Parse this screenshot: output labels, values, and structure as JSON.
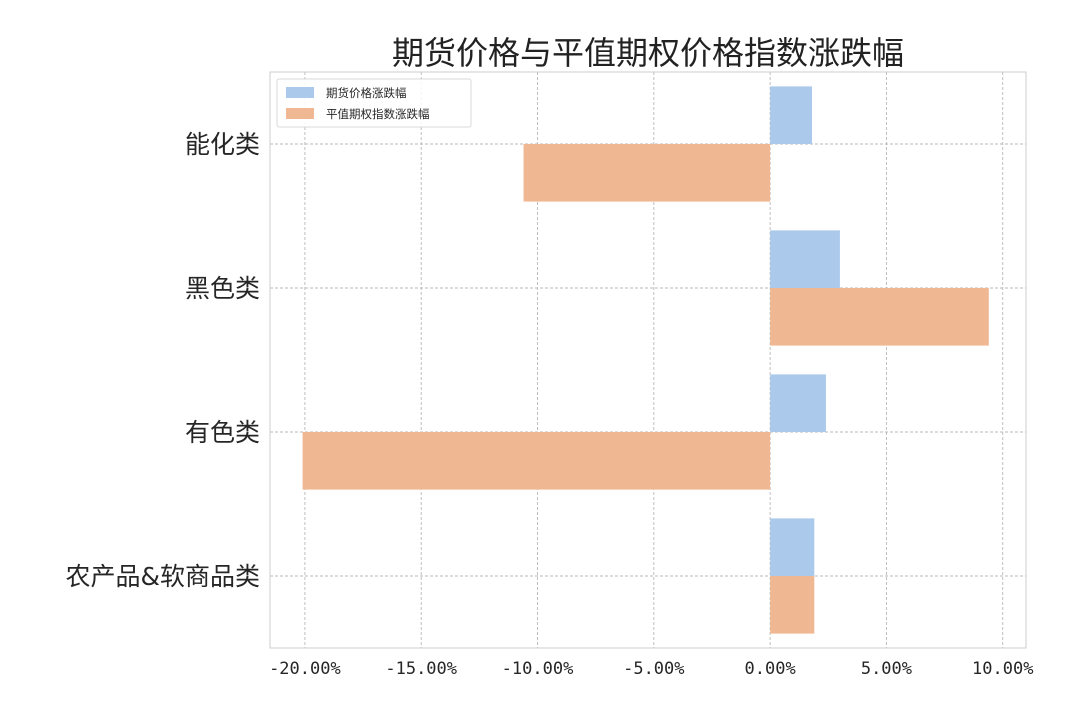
{
  "chart_data": {
    "type": "bar",
    "orientation": "horizontal",
    "title": "期货价格与平值期权价格指数涨跌幅",
    "categories": [
      "能化类",
      "黑色类",
      "有色类",
      "农产品&软商品类"
    ],
    "series": [
      {
        "name": "期货价格涨跌幅",
        "values": [
          1.8,
          3.0,
          2.4,
          1.9
        ]
      },
      {
        "name": "平值期权指数涨跌幅",
        "values": [
          -10.6,
          9.4,
          -20.1,
          1.9
        ]
      }
    ],
    "xlim": [
      -21.5,
      11.0
    ],
    "xticks": [
      -20,
      -15,
      -10,
      -5,
      0,
      5,
      10
    ],
    "xtick_labels": [
      "-20.00%",
      "-15.00%",
      "-10.00%",
      "-5.00%",
      "0.00%",
      "5.00%",
      "10.00%"
    ],
    "xlabel": "",
    "ylabel": "",
    "grid": true,
    "legend_position": "top-left",
    "colors": [
      "#abc9ea",
      "#efb792"
    ]
  }
}
